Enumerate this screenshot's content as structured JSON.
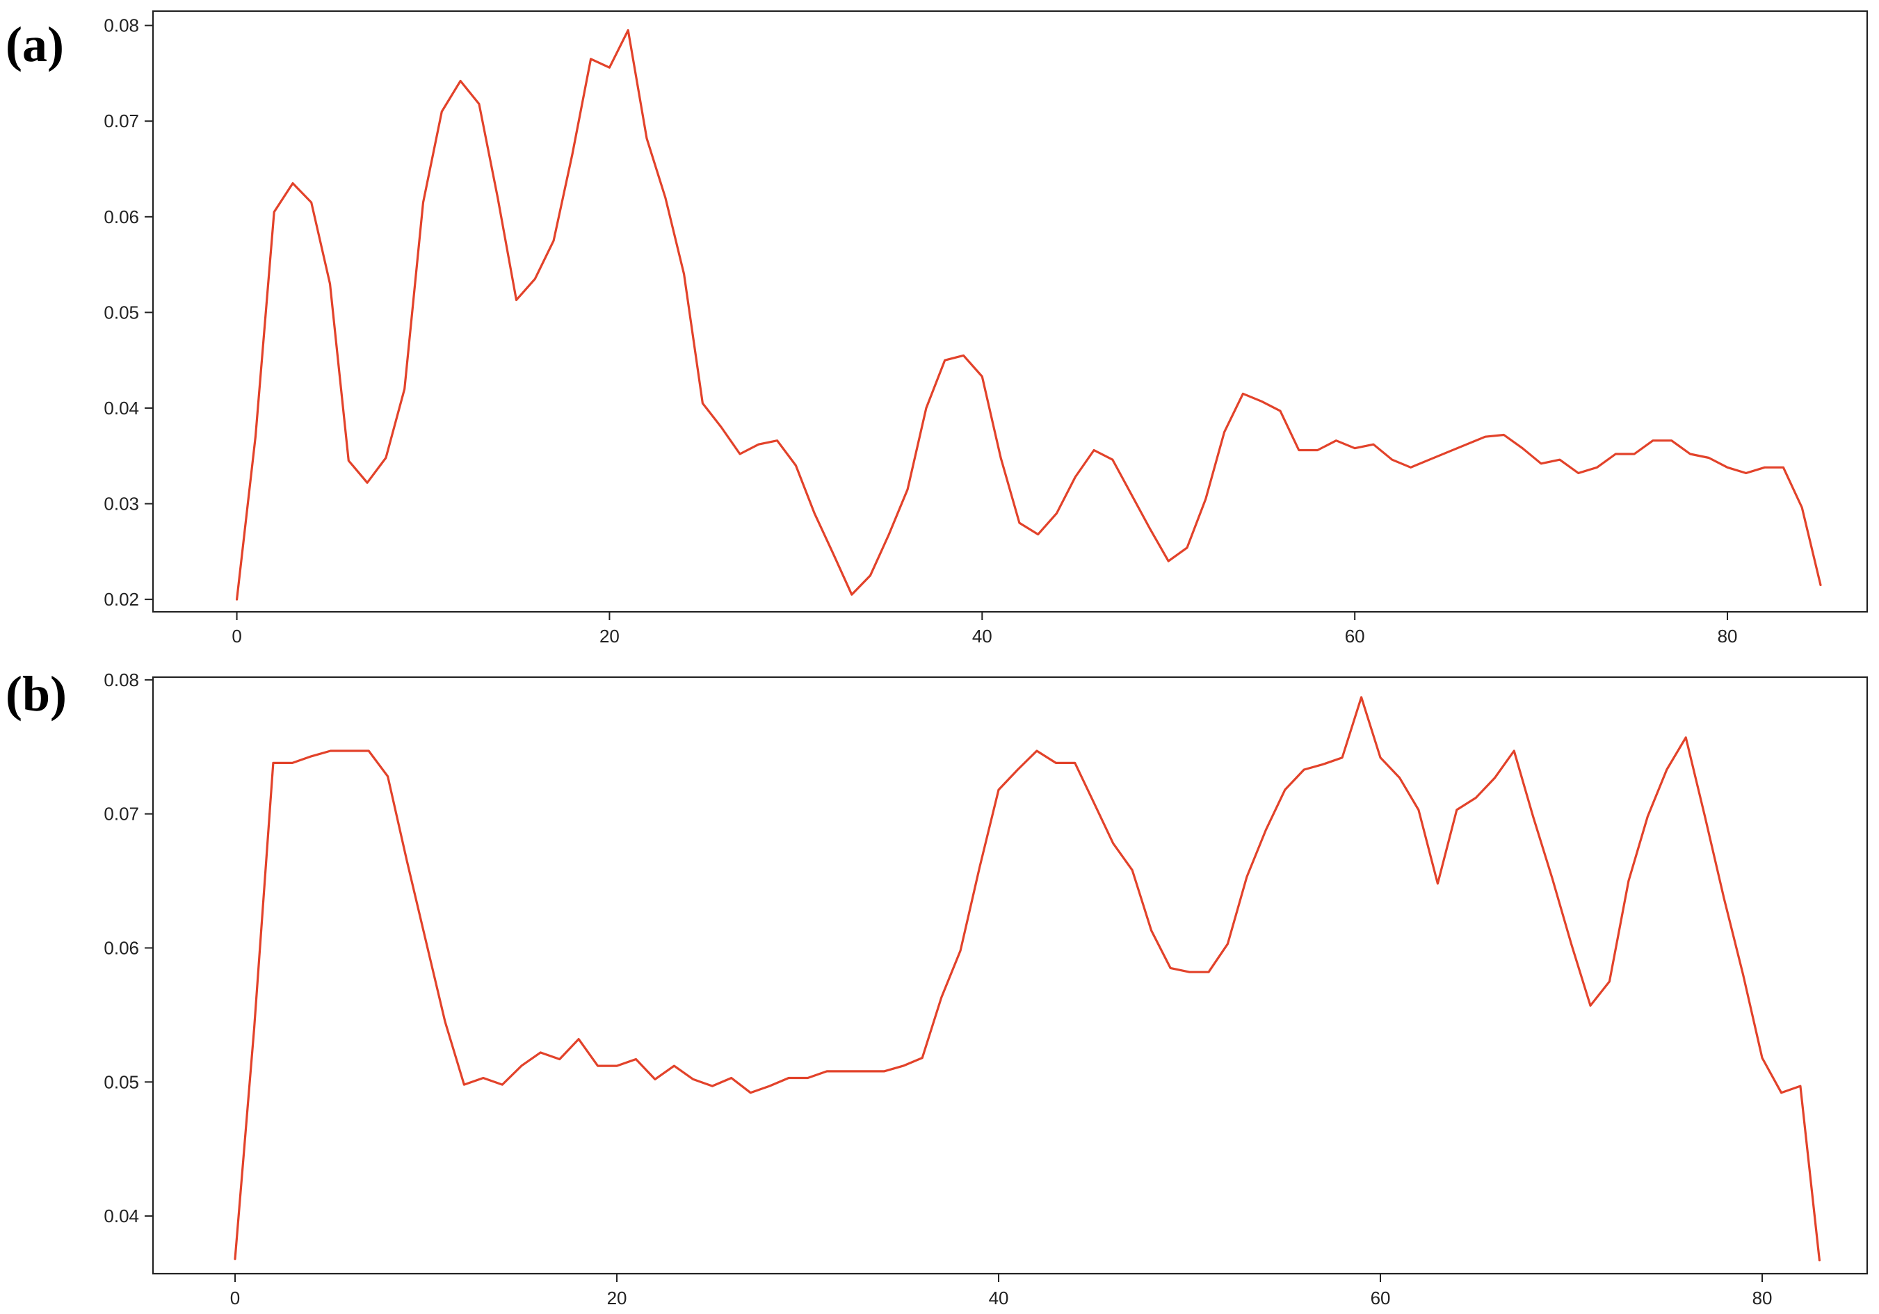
{
  "accent_color": "#e2422a",
  "chart_data": [
    {
      "type": "line",
      "panel_label": "(a)",
      "xlim": [
        -4.5,
        87.5
      ],
      "ylim": [
        0.0187,
        0.0815
      ],
      "xticks": [
        0,
        20,
        40,
        60,
        80
      ],
      "yticks": [
        0.02,
        0.03,
        0.04,
        0.05,
        0.06,
        0.07,
        0.08
      ],
      "xtick_labels": [
        "0",
        "20",
        "40",
        "60",
        "80"
      ],
      "ytick_labels": [
        "0.02",
        "0.03",
        "0.04",
        "0.05",
        "0.06",
        "0.07",
        "0.08"
      ],
      "grid": false,
      "series": [
        {
          "color": "#e2422a",
          "x": [
            0,
            1,
            2,
            3,
            4,
            5,
            6,
            7,
            8,
            9,
            10,
            11,
            12,
            13,
            14,
            15,
            16,
            17,
            18,
            19,
            20,
            21,
            22,
            23,
            24,
            25,
            26,
            27,
            28,
            29,
            30,
            31,
            32,
            33,
            34,
            35,
            36,
            37,
            38,
            39,
            40,
            41,
            42,
            43,
            44,
            45,
            46,
            47,
            48,
            49,
            50,
            51,
            52,
            53,
            54,
            55,
            56,
            57,
            58,
            59,
            60,
            61,
            62,
            63,
            64,
            65,
            66,
            67,
            68,
            69,
            70,
            71,
            72,
            73,
            74,
            75,
            76,
            77,
            78,
            79,
            80,
            81,
            82,
            83,
            84,
            85
          ],
          "y": [
            0.02,
            0.037,
            0.0605,
            0.0635,
            0.0615,
            0.053,
            0.0345,
            0.0322,
            0.0348,
            0.042,
            0.0615,
            0.071,
            0.0742,
            0.0718,
            0.062,
            0.0513,
            0.0535,
            0.0575,
            0.0665,
            0.0765,
            0.0756,
            0.0795,
            0.0682,
            0.062,
            0.054,
            0.0405,
            0.038,
            0.0352,
            0.0362,
            0.0366,
            0.034,
            0.029,
            0.0248,
            0.0205,
            0.0225,
            0.0268,
            0.0315,
            0.04,
            0.045,
            0.0455,
            0.0433,
            0.0348,
            0.028,
            0.0268,
            0.029,
            0.0328,
            0.0356,
            0.0346,
            0.031,
            0.0274,
            0.024,
            0.0254,
            0.0305,
            0.0375,
            0.0415,
            0.0407,
            0.0397,
            0.0356,
            0.0356,
            0.0366,
            0.0358,
            0.0362,
            0.0346,
            0.0338,
            0.0346,
            0.0354,
            0.0362,
            0.037,
            0.0372,
            0.0358,
            0.0342,
            0.0346,
            0.0332,
            0.0338,
            0.0352,
            0.0352,
            0.0366,
            0.0366,
            0.0352,
            0.0348,
            0.0338,
            0.0332,
            0.0338,
            0.0338,
            0.0296,
            0.0215
          ]
        }
      ]
    },
    {
      "type": "line",
      "panel_label": "(b)",
      "xlim": [
        -4.3,
        85.5
      ],
      "ylim": [
        0.0357,
        0.0802
      ],
      "xticks": [
        0,
        20,
        40,
        60,
        80
      ],
      "yticks": [
        0.04,
        0.05,
        0.06,
        0.07,
        0.08
      ],
      "xtick_labels": [
        "0",
        "20",
        "40",
        "60",
        "80"
      ],
      "ytick_labels": [
        "0.04",
        "0.05",
        "0.06",
        "0.07",
        "0.08"
      ],
      "grid": false,
      "series": [
        {
          "color": "#e2422a",
          "x": [
            0,
            1,
            2,
            3,
            4,
            5,
            6,
            7,
            8,
            9,
            10,
            11,
            12,
            13,
            14,
            15,
            16,
            17,
            18,
            19,
            20,
            21,
            22,
            23,
            24,
            25,
            26,
            27,
            28,
            29,
            30,
            31,
            32,
            33,
            34,
            35,
            36,
            37,
            38,
            39,
            40,
            41,
            42,
            43,
            44,
            45,
            46,
            47,
            48,
            49,
            50,
            51,
            52,
            53,
            54,
            55,
            56,
            57,
            58,
            59,
            60,
            61,
            62,
            63,
            64,
            65,
            66,
            67,
            68,
            69,
            70,
            71,
            72,
            73,
            74,
            75,
            76,
            77,
            78,
            79,
            80,
            81,
            82,
            83
          ],
          "y": [
            0.0368,
            0.054,
            0.0738,
            0.0738,
            0.0743,
            0.0747,
            0.0747,
            0.0747,
            0.0728,
            0.0665,
            0.0605,
            0.0545,
            0.0498,
            0.0503,
            0.0498,
            0.0512,
            0.0522,
            0.0517,
            0.0532,
            0.0512,
            0.0512,
            0.0517,
            0.0502,
            0.0512,
            0.0502,
            0.0497,
            0.0503,
            0.0492,
            0.0497,
            0.0503,
            0.0503,
            0.0508,
            0.0508,
            0.0508,
            0.0508,
            0.0512,
            0.0518,
            0.0563,
            0.0598,
            0.066,
            0.0718,
            0.0733,
            0.0747,
            0.0738,
            0.0738,
            0.0708,
            0.0678,
            0.0658,
            0.0613,
            0.0585,
            0.0582,
            0.0582,
            0.0603,
            0.0653,
            0.0688,
            0.0718,
            0.0733,
            0.0737,
            0.0742,
            0.0787,
            0.0742,
            0.0727,
            0.0703,
            0.0648,
            0.0703,
            0.0712,
            0.0727,
            0.0747,
            0.0698,
            0.0652,
            0.0603,
            0.0557,
            0.0575,
            0.065,
            0.0698,
            0.0733,
            0.0757,
            0.0698,
            0.0637,
            0.058,
            0.0518,
            0.0492,
            0.0497,
            0.0367
          ]
        }
      ]
    }
  ]
}
